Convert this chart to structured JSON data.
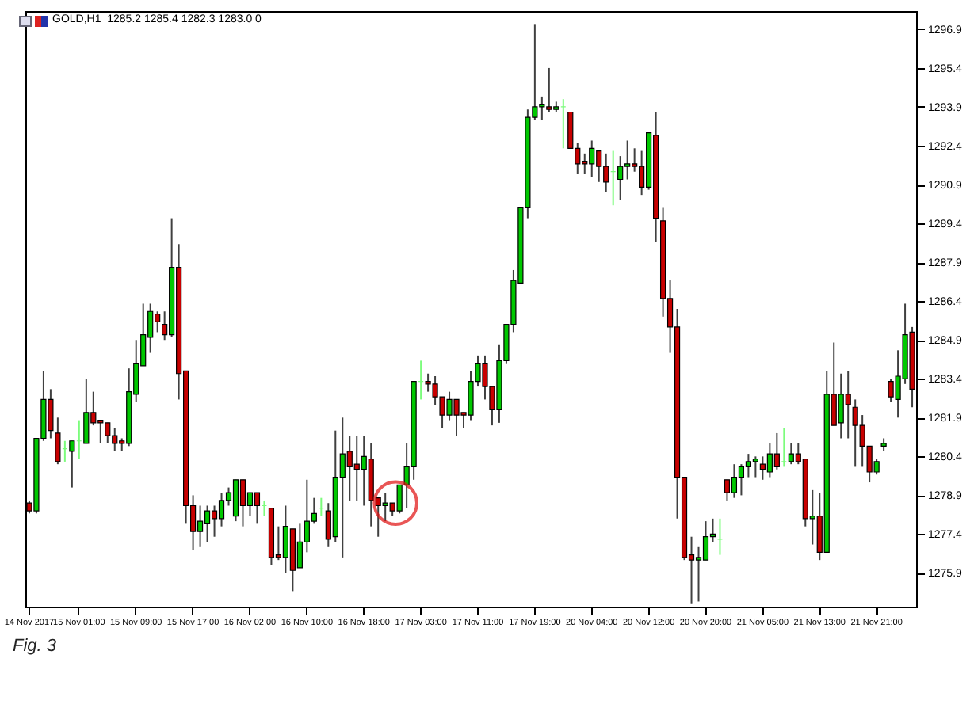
{
  "chart_data": {
    "type": "candlestick",
    "annotations": [
      "GOLD,H1  1285.2 1285.4 1282.3 1283.0 0",
      "Fig. 3"
    ],
    "categories": [
      "14 Nov 2017",
      null,
      null,
      null,
      null,
      null,
      null,
      "15 Nov 01:00",
      null,
      null,
      null,
      null,
      null,
      null,
      null,
      "15 Nov 09:00",
      null,
      null,
      null,
      null,
      null,
      null,
      null,
      "15 Nov 17:00",
      null,
      null,
      null,
      null,
      null,
      null,
      null,
      "16 Nov 02:00",
      null,
      null,
      null,
      null,
      null,
      null,
      null,
      "16 Nov 10:00",
      null,
      null,
      null,
      null,
      null,
      null,
      null,
      "16 Nov 18:00",
      null,
      null,
      null,
      null,
      null,
      null,
      null,
      "17 Nov 03:00",
      null,
      null,
      null,
      null,
      null,
      null,
      null,
      "17 Nov 11:00",
      null,
      null,
      null,
      null,
      null,
      null,
      null,
      "17 Nov 19:00",
      null,
      null,
      null,
      null,
      null,
      null,
      null,
      "20 Nov 04:00",
      null,
      null,
      null,
      null,
      null,
      null,
      null,
      "20 Nov 12:00",
      null,
      null,
      null,
      null,
      null,
      null,
      null,
      "20 Nov 20:00",
      null,
      null,
      null,
      null,
      null,
      null,
      null,
      "21 Nov 05:00",
      null,
      null,
      null,
      null,
      null,
      null,
      null,
      "21 Nov 13:00",
      null,
      null,
      null,
      null,
      null,
      null,
      null,
      "21 Nov 21:00",
      null,
      null,
      null,
      null,
      null
    ],
    "ohlc": [
      [
        1278.6,
        1278.7,
        1278.2,
        1278.3
      ],
      [
        1278.3,
        1281.1,
        1278.2,
        1281.1
      ],
      [
        1281.1,
        1283.7,
        1281.0,
        1282.6
      ],
      [
        1282.6,
        1283.0,
        1281.1,
        1281.4
      ],
      [
        1281.3,
        1281.9,
        1280.1,
        1280.2
      ],
      [
        1280.7,
        1281.0,
        1280.2,
        1280.7
      ],
      [
        1280.6,
        1281.0,
        1279.2,
        1281.0
      ],
      [
        1281.0,
        1281.8,
        1280.3,
        1281.0
      ],
      [
        1280.9,
        1283.4,
        1280.9,
        1282.1
      ],
      [
        1282.1,
        1282.9,
        1281.6,
        1281.7
      ],
      [
        1281.8,
        1281.8,
        1280.9,
        1281.7
      ],
      [
        1281.7,
        1281.7,
        1280.9,
        1281.2
      ],
      [
        1281.2,
        1281.5,
        1280.6,
        1280.9
      ],
      [
        1281.0,
        1281.1,
        1280.6,
        1280.9
      ],
      [
        1280.9,
        1283.8,
        1280.8,
        1282.9
      ],
      [
        1282.8,
        1284.9,
        1282.5,
        1284.0
      ],
      [
        1283.9,
        1286.3,
        1283.9,
        1285.1
      ],
      [
        1285.0,
        1286.3,
        1284.4,
        1286.0
      ],
      [
        1285.9,
        1286.0,
        1285.2,
        1285.6
      ],
      [
        1285.5,
        1286.0,
        1284.9,
        1285.1
      ],
      [
        1285.1,
        1289.6,
        1285.0,
        1287.7
      ],
      [
        1287.7,
        1288.6,
        1282.6,
        1283.6
      ],
      [
        1283.7,
        1283.7,
        1277.8,
        1278.5
      ],
      [
        1278.5,
        1278.9,
        1276.8,
        1277.5
      ],
      [
        1277.5,
        1278.5,
        1276.9,
        1277.9
      ],
      [
        1277.8,
        1278.5,
        1277.1,
        1278.3
      ],
      [
        1278.3,
        1278.5,
        1277.3,
        1278.0
      ],
      [
        1278.0,
        1279.0,
        1277.7,
        1278.7
      ],
      [
        1278.7,
        1279.2,
        1278.5,
        1279.0
      ],
      [
        1278.1,
        1279.5,
        1277.9,
        1279.5
      ],
      [
        1279.5,
        1279.5,
        1277.7,
        1278.5
      ],
      [
        1278.5,
        1279.0,
        1278.1,
        1279.0
      ],
      [
        1279.0,
        1279.0,
        1277.8,
        1278.5
      ],
      [
        1278.5,
        1278.7,
        1278.1,
        1278.5
      ],
      [
        1278.4,
        1278.4,
        1276.2,
        1276.5
      ],
      [
        1276.6,
        1277.7,
        1276.4,
        1276.5
      ],
      [
        1276.5,
        1278.5,
        1275.9,
        1277.7
      ],
      [
        1277.6,
        1277.6,
        1275.2,
        1276.0
      ],
      [
        1276.1,
        1277.8,
        1276.1,
        1277.1
      ],
      [
        1277.1,
        1279.5,
        1276.7,
        1277.9
      ],
      [
        1277.9,
        1278.8,
        1277.8,
        1278.2
      ],
      [
        1278.4,
        1278.8,
        1278.1,
        1278.4
      ],
      [
        1278.3,
        1278.6,
        1276.9,
        1277.2
      ],
      [
        1277.3,
        1281.4,
        1277.1,
        1279.6
      ],
      [
        1279.6,
        1281.9,
        1276.5,
        1280.5
      ],
      [
        1280.6,
        1281.2,
        1278.7,
        1280.0
      ],
      [
        1280.1,
        1281.2,
        1278.7,
        1279.9
      ],
      [
        1279.9,
        1281.2,
        1278.5,
        1280.4
      ],
      [
        1280.3,
        1280.9,
        1277.7,
        1278.7
      ],
      [
        1278.8,
        1278.8,
        1277.3,
        1278.5
      ],
      [
        1278.5,
        1279.0,
        1277.9,
        1278.6
      ],
      [
        1278.6,
        1278.6,
        1278.1,
        1278.3
      ],
      [
        1278.3,
        1279.3,
        1278.2,
        1279.3
      ],
      [
        1279.3,
        1280.9,
        1278.4,
        1280.0
      ],
      [
        1280.0,
        1283.3,
        1279.5,
        1283.3
      ],
      [
        1283.3,
        1284.1,
        1282.6,
        1283.3
      ],
      [
        1283.3,
        1283.6,
        1282.9,
        1283.2
      ],
      [
        1283.2,
        1283.5,
        1282.4,
        1282.7
      ],
      [
        1282.7,
        1282.7,
        1281.5,
        1282.0
      ],
      [
        1282.0,
        1282.9,
        1281.8,
        1282.6
      ],
      [
        1282.6,
        1282.6,
        1281.2,
        1282.0
      ],
      [
        1282.1,
        1282.1,
        1281.5,
        1282.0
      ],
      [
        1282.0,
        1283.7,
        1281.8,
        1283.3
      ],
      [
        1283.3,
        1284.3,
        1283.1,
        1284.0
      ],
      [
        1284.0,
        1284.3,
        1282.6,
        1283.1
      ],
      [
        1283.1,
        1283.1,
        1281.6,
        1282.2
      ],
      [
        1282.2,
        1284.7,
        1281.7,
        1284.1
      ],
      [
        1284.1,
        1285.5,
        1284.0,
        1285.5
      ],
      [
        1285.5,
        1287.6,
        1285.2,
        1287.2
      ],
      [
        1287.1,
        1290.0,
        1287.1,
        1290.0
      ],
      [
        1290.0,
        1293.8,
        1289.6,
        1293.5
      ],
      [
        1293.5,
        1297.1,
        1293.4,
        1293.9
      ],
      [
        1293.9,
        1294.3,
        1293.4,
        1294.0
      ],
      [
        1293.9,
        1295.4,
        1293.7,
        1293.8
      ],
      [
        1293.8,
        1294.1,
        1293.7,
        1293.9
      ],
      [
        1293.9,
        1294.2,
        1292.3,
        1293.9
      ],
      [
        1293.7,
        1293.7,
        1292.3,
        1292.3
      ],
      [
        1292.3,
        1292.5,
        1291.3,
        1291.7
      ],
      [
        1291.8,
        1292.1,
        1291.3,
        1291.7
      ],
      [
        1291.7,
        1292.6,
        1291.2,
        1292.3
      ],
      [
        1292.2,
        1292.2,
        1291.0,
        1291.6
      ],
      [
        1291.6,
        1292.1,
        1290.6,
        1291.0
      ],
      [
        1291.4,
        1292.2,
        1290.1,
        1291.4
      ],
      [
        1291.1,
        1292.0,
        1290.3,
        1291.6
      ],
      [
        1291.6,
        1292.6,
        1291.1,
        1291.7
      ],
      [
        1291.7,
        1292.3,
        1291.4,
        1291.6
      ],
      [
        1291.6,
        1292.2,
        1290.5,
        1290.8
      ],
      [
        1290.8,
        1292.9,
        1290.7,
        1292.9
      ],
      [
        1292.8,
        1293.7,
        1288.7,
        1289.6
      ],
      [
        1289.5,
        1290.0,
        1285.8,
        1286.5
      ],
      [
        1286.5,
        1287.2,
        1284.4,
        1285.4
      ],
      [
        1285.4,
        1286.1,
        1278.0,
        1279.6
      ],
      [
        1279.6,
        1279.6,
        1276.4,
        1276.5
      ],
      [
        1276.6,
        1277.3,
        1274.7,
        1276.4
      ],
      [
        1276.4,
        1276.9,
        1274.8,
        1276.5
      ],
      [
        1276.4,
        1277.9,
        1276.4,
        1277.3
      ],
      [
        1277.3,
        1278.0,
        1277.1,
        1277.4
      ],
      [
        1277.2,
        1278.0,
        1276.6,
        1277.2
      ],
      [
        1279.5,
        1279.5,
        1278.7,
        1279.0
      ],
      [
        1279.0,
        1280.1,
        1278.8,
        1279.6
      ],
      [
        1279.6,
        1280.1,
        1278.9,
        1280.0
      ],
      [
        1280.0,
        1280.5,
        1279.6,
        1280.2
      ],
      [
        1280.2,
        1280.4,
        1279.6,
        1280.3
      ],
      [
        1280.1,
        1280.4,
        1279.5,
        1279.9
      ],
      [
        1279.8,
        1280.9,
        1279.6,
        1280.5
      ],
      [
        1280.5,
        1281.3,
        1279.9,
        1280.0
      ],
      [
        1280.2,
        1281.5,
        1280.0,
        1280.2
      ],
      [
        1280.2,
        1280.9,
        1280.1,
        1280.5
      ],
      [
        1280.5,
        1280.9,
        1280.1,
        1280.2
      ],
      [
        1280.3,
        1280.3,
        1277.7,
        1278.0
      ],
      [
        1278.0,
        1279.1,
        1277.0,
        1278.1
      ],
      [
        1278.1,
        1279.0,
        1276.4,
        1276.7
      ],
      [
        1276.7,
        1283.7,
        1276.7,
        1282.8
      ],
      [
        1282.8,
        1284.8,
        1281.6,
        1281.6
      ],
      [
        1281.7,
        1283.6,
        1281.1,
        1282.8
      ],
      [
        1282.8,
        1283.7,
        1281.1,
        1282.4
      ],
      [
        1282.3,
        1282.6,
        1280.0,
        1281.6
      ],
      [
        1281.6,
        1282.0,
        1280.0,
        1280.8
      ],
      [
        1280.8,
        1280.8,
        1279.4,
        1279.8
      ],
      [
        1279.8,
        1280.3,
        1279.7,
        1280.2
      ],
      [
        1280.8,
        1281.1,
        1280.6,
        1280.9
      ],
      [
        1283.3,
        1283.4,
        1282.5,
        1282.7
      ],
      [
        1282.6,
        1284.5,
        1281.9,
        1283.5
      ],
      [
        1283.4,
        1286.3,
        1283.2,
        1285.1
      ],
      [
        1285.2,
        1285.4,
        1282.3,
        1283.0
      ]
    ],
    "colors": [
      "#c80000",
      "#00c800",
      "#00c800",
      "#c80000",
      "#c80000",
      "#7cfc7c",
      "#00c800",
      "#7cfc7c",
      "#00c800",
      "#c80000",
      "#c80000",
      "#c80000",
      "#c80000",
      "#c80000",
      "#00c800",
      "#00c800",
      "#00c800",
      "#00c800",
      "#c80000",
      "#c80000",
      "#00c800",
      "#c80000",
      "#c80000",
      "#c80000",
      "#00c800",
      "#00c800",
      "#c80000",
      "#00c800",
      "#00c800",
      "#00c800",
      "#c80000",
      "#00c800",
      "#c80000",
      "#7cfc7c",
      "#c80000",
      "#c80000",
      "#00c800",
      "#c80000",
      "#00c800",
      "#00c800",
      "#00c800",
      "#7cfc7c",
      "#c80000",
      "#00c800",
      "#00c800",
      "#c80000",
      "#c80000",
      "#00c800",
      "#c80000",
      "#c80000",
      "#00c800",
      "#c80000",
      "#00c800",
      "#00c800",
      "#00c800",
      "#7cfc7c",
      "#c80000",
      "#c80000",
      "#c80000",
      "#00c800",
      "#c80000",
      "#c80000",
      "#00c800",
      "#00c800",
      "#c80000",
      "#c80000",
      "#00c800",
      "#00c800",
      "#00c800",
      "#00c800",
      "#00c800",
      "#00c800",
      "#00c800",
      "#c80000",
      "#00c800",
      "#7cfc7c",
      "#c80000",
      "#c80000",
      "#c80000",
      "#00c800",
      "#c80000",
      "#c80000",
      "#7cfc7c",
      "#00c800",
      "#00c800",
      "#c80000",
      "#c80000",
      "#00c800",
      "#c80000",
      "#c80000",
      "#c80000",
      "#c80000",
      "#c80000",
      "#c80000",
      "#00c800",
      "#00c800",
      "#00c800",
      "#7cfc7c",
      "#c80000",
      "#00c800",
      "#00c800",
      "#00c800",
      "#00c800",
      "#c80000",
      "#00c800",
      "#c80000",
      "#7cfc7c",
      "#00c800",
      "#c80000",
      "#c80000",
      "#00c800",
      "#c80000",
      "#00c800",
      "#c80000",
      "#00c800",
      "#c80000",
      "#c80000",
      "#c80000",
      "#c80000",
      "#00c800",
      "#00c800",
      "#c80000",
      "#00c800",
      "#00c800",
      "#c80000"
    ],
    "ylim": [
      1274.6,
      1297.6
    ],
    "yticks": [
      1275.9,
      1277.4,
      1278.9,
      1280.4,
      1281.9,
      1283.4,
      1284.9,
      1286.4,
      1287.9,
      1289.4,
      1290.9,
      1292.4,
      1293.9,
      1295.4,
      1296.9
    ]
  }
}
